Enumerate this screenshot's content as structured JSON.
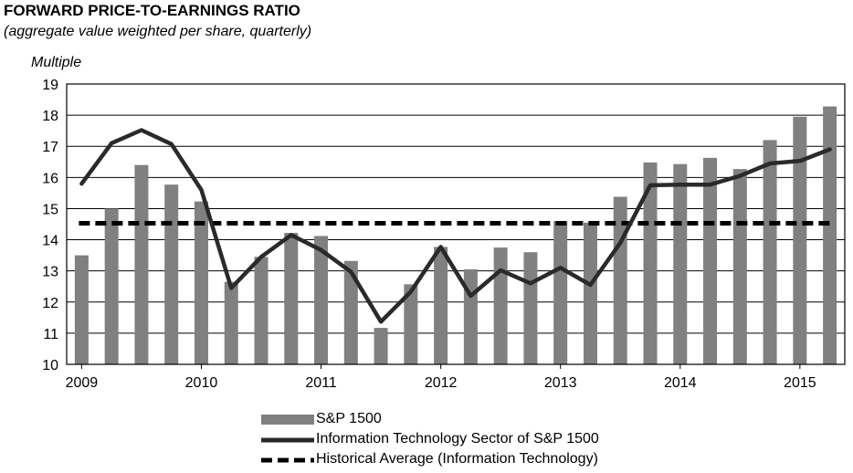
{
  "title": "FORWARD PRICE-TO-EARNINGS RATIO",
  "subtitle": "(aggregate value weighted per share, quarterly)",
  "colors": {
    "bars": "#808080",
    "line": "#2a2a2a",
    "average": "#000000",
    "grid": "#000000"
  },
  "chart_data": {
    "type": "bar",
    "title": "FORWARD PRICE-TO-EARNINGS RATIO",
    "subtitle": "(aggregate value weighted per share, quarterly)",
    "ylabel": "Multiple",
    "xlabel": "",
    "ylim": [
      10,
      19
    ],
    "yticks": [
      10,
      11,
      12,
      13,
      14,
      15,
      16,
      17,
      18,
      19
    ],
    "xtick_labels": [
      "2009",
      "2010",
      "2011",
      "2012",
      "2013",
      "2014",
      "2015"
    ],
    "xtick_quarter_index": [
      0,
      4,
      8,
      12,
      16,
      20,
      24
    ],
    "grid": "horizontal",
    "legend_position": "bottom",
    "series": [
      {
        "name": "S&P 1500",
        "type": "bar",
        "values": [
          13.5,
          15.0,
          16.4,
          15.77,
          15.23,
          12.65,
          13.45,
          14.22,
          14.12,
          13.32,
          11.17,
          12.57,
          13.77,
          13.05,
          13.75,
          13.6,
          14.6,
          14.55,
          15.38,
          16.48,
          16.43,
          16.63,
          16.27,
          17.2,
          17.95,
          18.28
        ]
      },
      {
        "name": "Information Technology Sector of S&P 1500",
        "type": "line",
        "values": [
          15.8,
          17.1,
          17.52,
          17.07,
          15.6,
          12.45,
          13.45,
          14.15,
          13.67,
          12.97,
          11.37,
          12.33,
          13.77,
          12.2,
          13.02,
          12.6,
          13.1,
          12.55,
          13.9,
          15.75,
          15.77,
          15.77,
          16.05,
          16.45,
          16.53,
          16.9
        ]
      },
      {
        "name": "Historical Average (Information Technology)",
        "type": "line-dashed",
        "values": [
          14.53
        ]
      }
    ]
  }
}
